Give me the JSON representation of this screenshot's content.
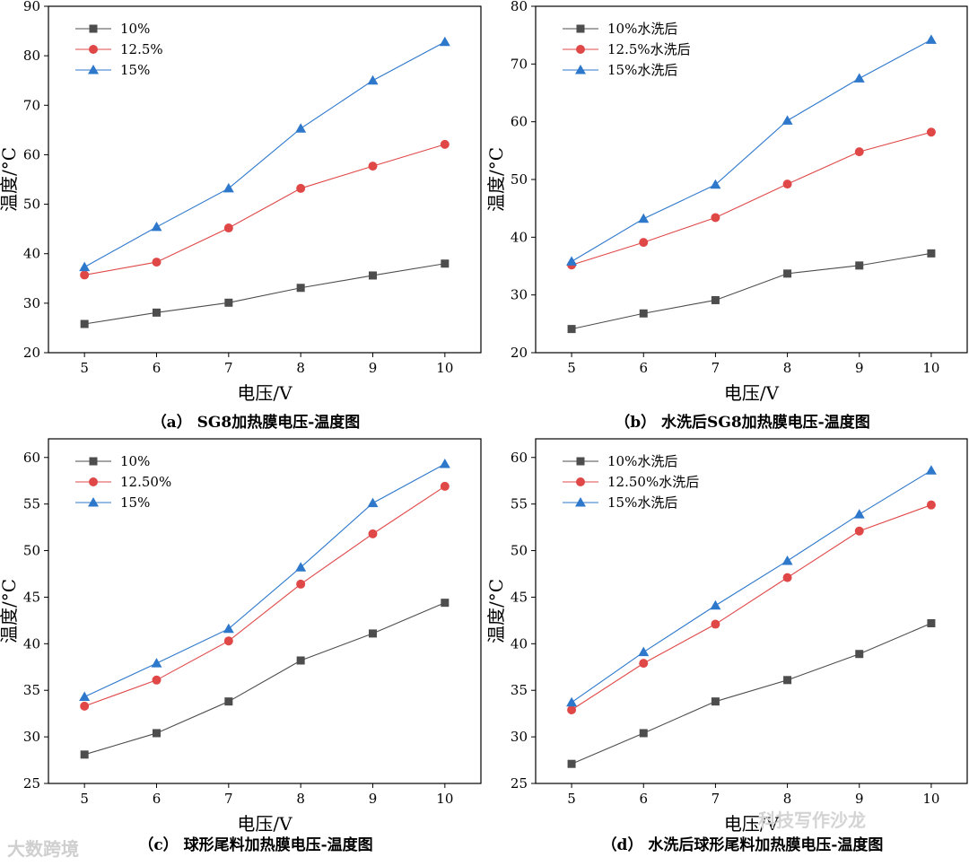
{
  "watermarks": {
    "left": "大数跨境",
    "right": "科技写作沙龙"
  },
  "colors": {
    "series": [
      "#4d4d4d",
      "#e04848",
      "#2e78cc"
    ],
    "axis": "#000000"
  },
  "chart_data": [
    {
      "type": "line",
      "caption": "（a） SG8加热膜电压-温度图",
      "xlabel": "电压/V",
      "ylabel": "温度/°C",
      "x": [
        5,
        6,
        7,
        8,
        9,
        10
      ],
      "xlim": [
        4.5,
        10.5
      ],
      "ylim": [
        20,
        90
      ],
      "yticks": [
        20,
        30,
        40,
        50,
        60,
        70,
        80,
        90
      ],
      "legend": "top-left",
      "series": [
        {
          "name": "10%",
          "marker": "square",
          "values": [
            25.8,
            28.1,
            30.1,
            33.1,
            35.6,
            38.0
          ]
        },
        {
          "name": "12.5%",
          "marker": "circle",
          "values": [
            35.7,
            38.3,
            45.2,
            53.2,
            57.7,
            62.1
          ]
        },
        {
          "name": "15%",
          "marker": "triangle",
          "values": [
            37.3,
            45.4,
            53.2,
            65.3,
            75.0,
            82.8
          ]
        }
      ]
    },
    {
      "type": "line",
      "caption": "（b） 水洗后SG8加热膜电压-温度图",
      "xlabel": "电压/V",
      "ylabel": "温度/°C",
      "x": [
        5,
        6,
        7,
        8,
        9,
        10
      ],
      "xlim": [
        4.5,
        10.5
      ],
      "ylim": [
        20,
        80
      ],
      "yticks": [
        20,
        30,
        40,
        50,
        60,
        70,
        80
      ],
      "legend": "top-left",
      "series": [
        {
          "name": "10%水洗后",
          "marker": "square",
          "values": [
            24.1,
            26.8,
            29.1,
            33.7,
            35.1,
            37.2
          ]
        },
        {
          "name": "12.5%水洗后",
          "marker": "circle",
          "values": [
            35.2,
            39.1,
            43.4,
            49.2,
            54.8,
            58.2
          ]
        },
        {
          "name": "15%水洗后",
          "marker": "triangle",
          "values": [
            35.8,
            43.2,
            49.1,
            60.2,
            67.5,
            74.2
          ]
        }
      ]
    },
    {
      "type": "line",
      "caption": "（c） 球形尾料加热膜电压-温度图",
      "xlabel": "电压/V",
      "ylabel": "温度/°C",
      "x": [
        5,
        6,
        7,
        8,
        9,
        10
      ],
      "xlim": [
        4.5,
        10.5
      ],
      "ylim": [
        25,
        62
      ],
      "yticks": [
        25,
        30,
        35,
        40,
        45,
        50,
        55,
        60
      ],
      "legend": "top-left",
      "series": [
        {
          "name": "10%",
          "marker": "square",
          "values": [
            28.1,
            30.4,
            33.8,
            38.2,
            41.1,
            44.4
          ]
        },
        {
          "name": "12.50%",
          "marker": "circle",
          "values": [
            33.3,
            36.1,
            40.3,
            46.4,
            51.8,
            56.9
          ]
        },
        {
          "name": "15%",
          "marker": "triangle",
          "values": [
            34.3,
            37.9,
            41.6,
            48.2,
            55.1,
            59.3
          ]
        }
      ]
    },
    {
      "type": "line",
      "caption": "（d） 水洗后球形尾料加热膜电压-温度图",
      "xlabel": "电压/V",
      "ylabel": "温度/°C",
      "x": [
        5,
        6,
        7,
        8,
        9,
        10
      ],
      "xlim": [
        4.5,
        10.5
      ],
      "ylim": [
        25,
        62
      ],
      "yticks": [
        25,
        30,
        35,
        40,
        45,
        50,
        55,
        60
      ],
      "legend": "top-left",
      "series": [
        {
          "name": "10%水洗后",
          "marker": "square",
          "values": [
            27.1,
            30.4,
            33.8,
            36.1,
            38.9,
            42.2
          ]
        },
        {
          "name": "12.50%水洗后",
          "marker": "circle",
          "values": [
            32.9,
            37.9,
            42.1,
            47.1,
            52.1,
            54.9
          ]
        },
        {
          "name": "15%水洗后",
          "marker": "triangle",
          "values": [
            33.7,
            39.1,
            44.1,
            48.9,
            53.9,
            58.6
          ]
        }
      ]
    }
  ]
}
